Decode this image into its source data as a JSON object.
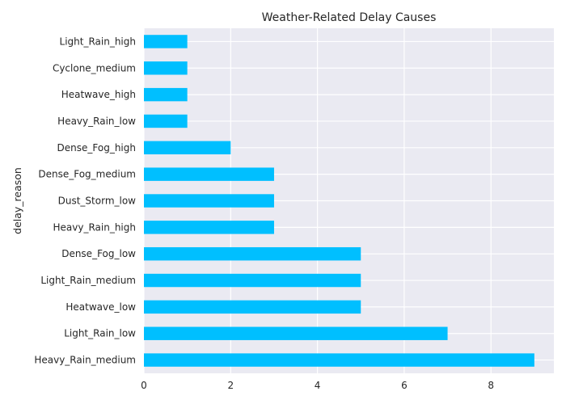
{
  "chart_data": {
    "type": "bar",
    "orientation": "horizontal",
    "title": "Weather-Related Delay Causes",
    "xlabel": "",
    "ylabel": "delay_reason",
    "categories": [
      "Heavy_Rain_medium",
      "Light_Rain_low",
      "Heatwave_low",
      "Light_Rain_medium",
      "Dense_Fog_low",
      "Heavy_Rain_high",
      "Dust_Storm_low",
      "Dense_Fog_medium",
      "Dense_Fog_high",
      "Heavy_Rain_low",
      "Heatwave_high",
      "Cyclone_medium",
      "Light_Rain_high"
    ],
    "values": [
      9,
      7,
      5,
      5,
      5,
      3,
      3,
      3,
      2,
      1,
      1,
      1,
      1
    ],
    "xlim": [
      0,
      9.45
    ],
    "xticks": [
      0,
      2,
      4,
      6,
      8
    ],
    "grid": true,
    "legend": "none",
    "colors": {
      "bar": "#00BFFF",
      "plot_background": "#EAEAF2",
      "grid": "#FFFFFF",
      "text": "#262626"
    }
  }
}
